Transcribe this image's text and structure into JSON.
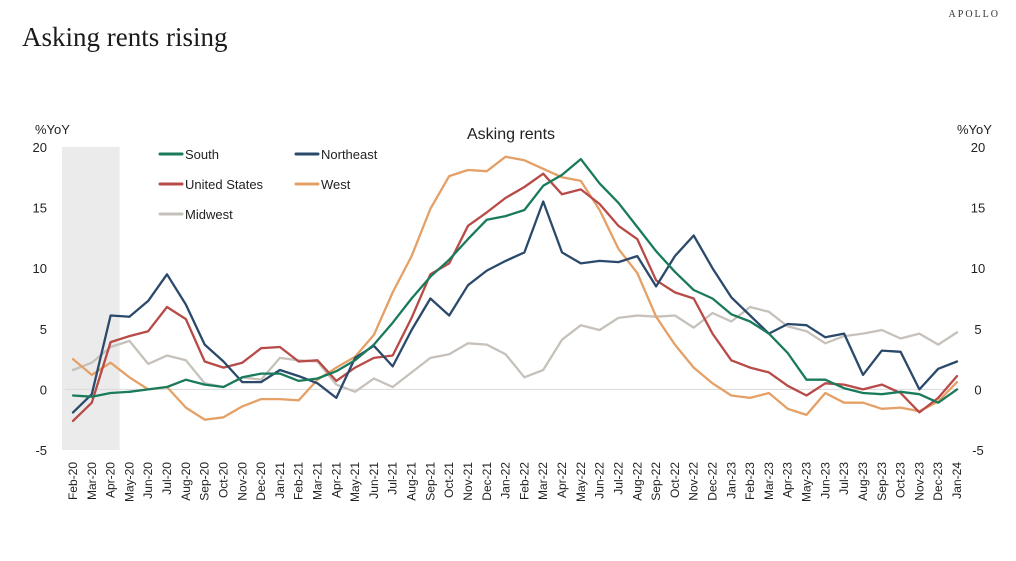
{
  "page": {
    "title": "Asking rents rising",
    "brand": "APOLLO"
  },
  "chart_data": {
    "type": "line",
    "title": "Asking rents",
    "ylabel_left": "%YoY",
    "ylabel_right": "%YoY",
    "ylim": [
      -5,
      20
    ],
    "yticks": [
      -5,
      0,
      5,
      10,
      15,
      20
    ],
    "grid": false,
    "legend": "top-left",
    "shaded_period": {
      "from": "Feb-20",
      "to": "Apr-20",
      "color": "#ebebeb"
    },
    "x": [
      "Feb-20",
      "Mar-20",
      "Apr-20",
      "May-20",
      "Jun-20",
      "Jul-20",
      "Aug-20",
      "Sep-20",
      "Oct-20",
      "Nov-20",
      "Dec-20",
      "Jan-21",
      "Feb-21",
      "Mar-21",
      "Apr-21",
      "May-21",
      "Jun-21",
      "Jul-21",
      "Aug-21",
      "Sep-21",
      "Oct-21",
      "Nov-21",
      "Dec-21",
      "Jan-22",
      "Feb-22",
      "Mar-22",
      "Apr-22",
      "May-22",
      "Jun-22",
      "Jul-22",
      "Aug-22",
      "Sep-22",
      "Oct-22",
      "Nov-22",
      "Dec-22",
      "Jan-23",
      "Feb-23",
      "Mar-23",
      "Apr-23",
      "May-23",
      "Jun-23",
      "Jul-23",
      "Aug-23",
      "Sep-23",
      "Oct-23",
      "Nov-23",
      "Dec-23",
      "Jan-24"
    ],
    "series": [
      {
        "name": "South",
        "color": "#1a7a5c",
        "values": [
          -0.5,
          -0.6,
          -0.3,
          -0.2,
          0.0,
          0.2,
          0.8,
          0.4,
          0.2,
          1.0,
          1.3,
          1.3,
          0.7,
          0.9,
          1.5,
          2.4,
          3.7,
          5.5,
          7.5,
          9.3,
          10.7,
          12.4,
          14.0,
          14.3,
          14.8,
          16.8,
          17.7,
          19.0,
          17.0,
          15.4,
          13.4,
          11.4,
          9.7,
          8.2,
          7.5,
          6.2,
          5.6,
          4.6,
          3.0,
          0.8,
          0.8,
          0.1,
          -0.3,
          -0.4,
          -0.2,
          -0.4,
          -1.1,
          0.0
        ]
      },
      {
        "name": "Northeast",
        "color": "#2b4a6b",
        "values": [
          -1.9,
          -0.4,
          6.1,
          6.0,
          7.3,
          9.5,
          7.0,
          3.7,
          2.3,
          0.6,
          0.6,
          1.6,
          1.1,
          0.5,
          -0.7,
          2.6,
          3.6,
          1.9,
          4.9,
          7.5,
          6.1,
          8.6,
          9.8,
          10.6,
          11.3,
          15.5,
          11.3,
          10.4,
          10.6,
          10.5,
          11.0,
          8.5,
          11.0,
          12.7,
          10.0,
          7.6,
          6.1,
          4.6,
          5.4,
          5.3,
          4.3,
          4.6,
          1.2,
          3.2,
          3.1,
          0.0,
          1.7,
          2.3
        ]
      },
      {
        "name": "United States",
        "color": "#b84a47",
        "values": [
          -2.6,
          -1.1,
          3.9,
          4.4,
          4.8,
          6.8,
          5.8,
          2.3,
          1.8,
          2.2,
          3.4,
          3.5,
          2.3,
          2.4,
          0.7,
          1.8,
          2.6,
          2.8,
          5.9,
          9.5,
          10.4,
          13.5,
          14.6,
          15.8,
          16.7,
          17.8,
          16.1,
          16.5,
          15.3,
          13.5,
          12.4,
          9.0,
          8.0,
          7.5,
          4.6,
          2.4,
          1.8,
          1.4,
          0.3,
          -0.5,
          0.5,
          0.4,
          0.0,
          0.4,
          -0.3,
          -1.9,
          -0.7,
          1.1
        ]
      },
      {
        "name": "West",
        "color": "#e4a066",
        "values": [
          2.5,
          1.2,
          2.2,
          1.0,
          0.0,
          0.2,
          -1.5,
          -2.5,
          -2.3,
          -1.4,
          -0.8,
          -0.8,
          -0.9,
          0.8,
          1.8,
          2.7,
          4.5,
          8.0,
          11.0,
          14.9,
          17.6,
          18.1,
          18.0,
          19.2,
          18.9,
          18.2,
          17.5,
          17.2,
          14.8,
          11.6,
          9.6,
          6.0,
          3.7,
          1.8,
          0.5,
          -0.5,
          -0.7,
          -0.3,
          -1.6,
          -2.1,
          -0.3,
          -1.1,
          -1.1,
          -1.6,
          -1.5,
          -1.8,
          -1.0,
          0.6
        ]
      },
      {
        "name": "Midwest",
        "color": "#c6c1bb",
        "values": [
          1.6,
          2.2,
          3.5,
          4.0,
          2.1,
          2.8,
          2.4,
          0.5,
          0.2,
          1.0,
          0.8,
          2.6,
          2.4,
          2.3,
          0.4,
          -0.2,
          0.9,
          0.2,
          1.4,
          2.6,
          2.9,
          3.8,
          3.7,
          2.9,
          1.0,
          1.6,
          4.1,
          5.3,
          4.9,
          5.9,
          6.1,
          6.0,
          6.1,
          5.1,
          6.3,
          5.6,
          6.8,
          6.4,
          5.2,
          4.8,
          3.8,
          4.4,
          4.6,
          4.9,
          4.2,
          4.6,
          3.7,
          4.7
        ]
      }
    ]
  }
}
